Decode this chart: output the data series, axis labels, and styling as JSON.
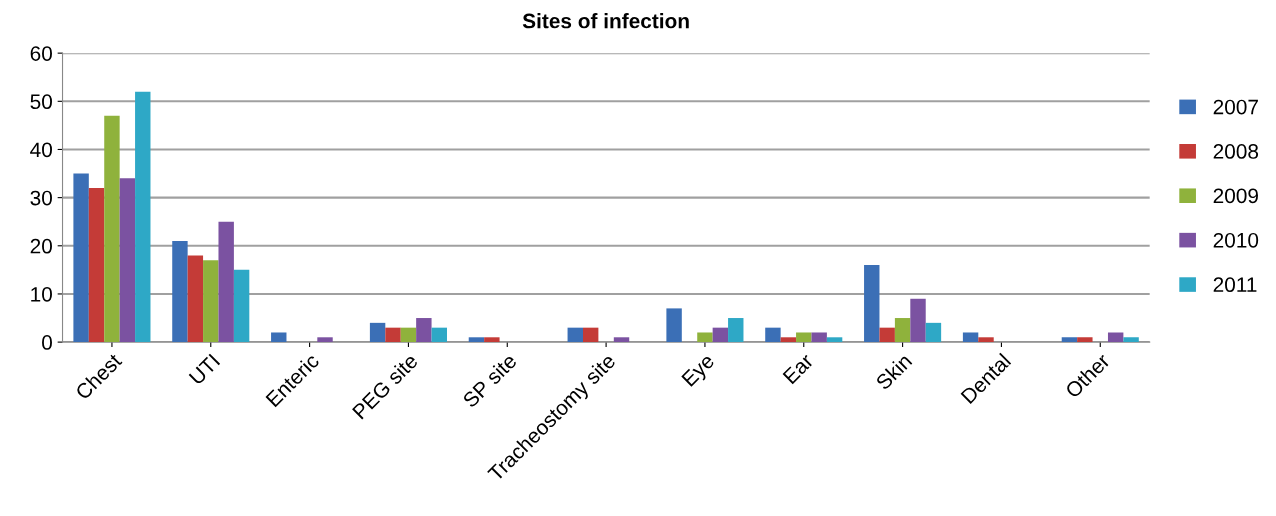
{
  "chart_data": {
    "type": "bar",
    "title": "Sites of infection",
    "categories": [
      "Chest",
      "UTI",
      "Enteric",
      "PEG site",
      "SP site",
      "Tracheostomy site",
      "Eye",
      "Ear",
      "Skin",
      "Dental",
      "Other"
    ],
    "series": [
      {
        "name": "2007",
        "color": "#3b6fb6",
        "values": [
          35,
          21,
          2,
          4,
          1,
          3,
          7,
          3,
          16,
          2,
          1
        ]
      },
      {
        "name": "2008",
        "color": "#c43b37",
        "values": [
          32,
          18,
          0,
          3,
          1,
          3,
          0,
          1,
          3,
          1,
          1
        ]
      },
      {
        "name": "2009",
        "color": "#8fb23c",
        "values": [
          47,
          17,
          0,
          3,
          0,
          0,
          2,
          2,
          5,
          0,
          0
        ]
      },
      {
        "name": "2010",
        "color": "#7b52a1",
        "values": [
          34,
          25,
          1,
          5,
          0,
          1,
          3,
          2,
          9,
          0,
          2
        ]
      },
      {
        "name": "2011",
        "color": "#2ea8c6",
        "values": [
          52,
          15,
          0,
          3,
          0,
          0,
          5,
          1,
          4,
          0,
          1
        ]
      }
    ],
    "ylim": [
      0,
      60
    ],
    "yticks": [
      0,
      10,
      20,
      30,
      40,
      50,
      60
    ],
    "grid": "y",
    "legend": "right"
  }
}
